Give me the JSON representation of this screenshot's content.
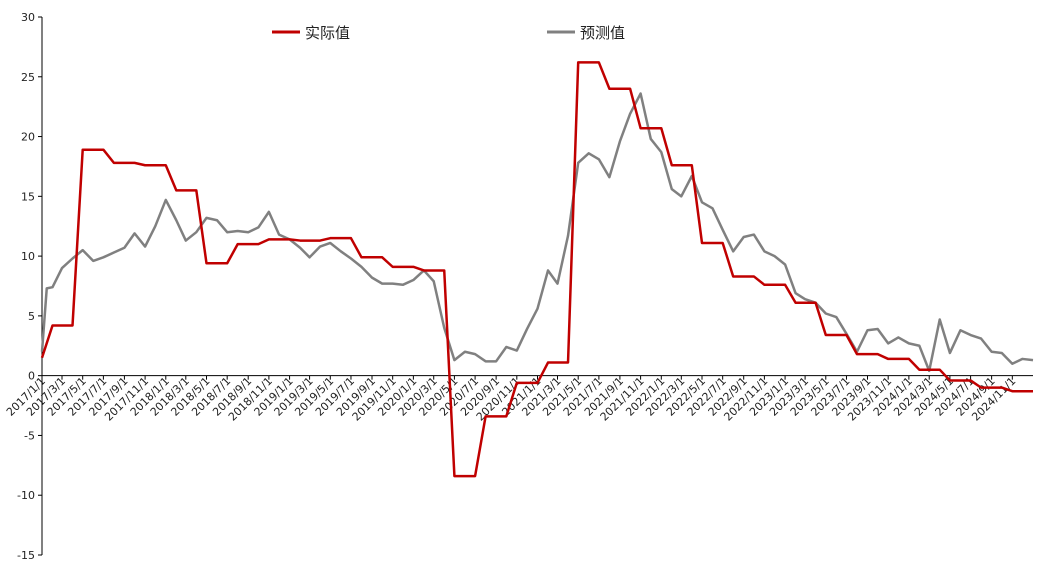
{
  "chart_data": {
    "type": "line",
    "title": "",
    "xlabel": "",
    "ylabel": "",
    "ylim": [
      -15,
      30
    ],
    "yticks": [
      -15,
      -10,
      -5,
      0,
      5,
      10,
      15,
      20,
      25,
      30
    ],
    "xlim": [
      "2017/1/1",
      "2025/1/1"
    ],
    "xtick_labels": [
      "2017/1/1",
      "2017/3/1",
      "2017/5/1",
      "2017/7/1",
      "2017/9/1",
      "2017/11/1",
      "2018/1/1",
      "2018/3/1",
      "2018/5/1",
      "2018/7/1",
      "2018/9/1",
      "2018/11/1",
      "2019/1/1",
      "2019/3/1",
      "2019/5/1",
      "2019/7/1",
      "2019/9/1",
      "2019/11/1",
      "2020/1/1",
      "2020/3/1",
      "2020/5/1",
      "2020/7/1",
      "2020/9/1",
      "2020/11/1",
      "2021/1/1",
      "2021/3/1",
      "2021/5/1",
      "2021/7/1",
      "2021/9/1",
      "2021/11/1",
      "2022/1/1",
      "2022/3/1",
      "2022/5/1",
      "2022/7/1",
      "2022/9/1",
      "2022/11/1",
      "2023/1/1",
      "2023/3/1",
      "2023/5/1",
      "2023/7/1",
      "2023/9/1",
      "2023/11/1",
      "2024/1/1",
      "2024/3/1",
      "2024/5/1",
      "2024/7/1",
      "2024/9/1",
      "2024/11/1"
    ],
    "grid": false,
    "legend": "top",
    "series": [
      {
        "name": "实际值",
        "color": "#C00000",
        "points": [
          [
            "2017/1/1",
            1.5
          ],
          [
            "2017/2/1",
            4.2
          ],
          [
            "2017/3/1",
            4.2
          ],
          [
            "2017/4/1",
            4.2
          ],
          [
            "2017/5/1",
            18.9
          ],
          [
            "2017/6/1",
            18.9
          ],
          [
            "2017/7/1",
            18.9
          ],
          [
            "2017/8/1",
            17.8
          ],
          [
            "2017/9/1",
            17.8
          ],
          [
            "2017/10/1",
            17.8
          ],
          [
            "2017/11/1",
            17.6
          ],
          [
            "2017/12/1",
            17.6
          ],
          [
            "2018/1/1",
            17.6
          ],
          [
            "2018/2/1",
            15.5
          ],
          [
            "2018/3/1",
            15.5
          ],
          [
            "2018/4/1",
            15.5
          ],
          [
            "2018/5/1",
            9.4
          ],
          [
            "2018/6/1",
            9.4
          ],
          [
            "2018/7/1",
            9.4
          ],
          [
            "2018/8/1",
            11.0
          ],
          [
            "2018/9/1",
            11.0
          ],
          [
            "2018/10/1",
            11.0
          ],
          [
            "2018/11/1",
            11.4
          ],
          [
            "2018/12/1",
            11.4
          ],
          [
            "2019/1/1",
            11.4
          ],
          [
            "2019/2/1",
            11.3
          ],
          [
            "2019/3/1",
            11.3
          ],
          [
            "2019/4/1",
            11.3
          ],
          [
            "2019/5/1",
            11.5
          ],
          [
            "2019/6/1",
            11.5
          ],
          [
            "2019/7/1",
            11.5
          ],
          [
            "2019/8/1",
            9.9
          ],
          [
            "2019/9/1",
            9.9
          ],
          [
            "2019/10/1",
            9.9
          ],
          [
            "2019/11/1",
            9.1
          ],
          [
            "2019/12/1",
            9.1
          ],
          [
            "2020/1/1",
            9.1
          ],
          [
            "2020/2/1",
            8.8
          ],
          [
            "2020/3/1",
            8.8
          ],
          [
            "2020/4/1",
            8.8
          ],
          [
            "2020/5/1",
            -8.4
          ],
          [
            "2020/6/1",
            -8.4
          ],
          [
            "2020/7/1",
            -8.4
          ],
          [
            "2020/8/1",
            -3.4
          ],
          [
            "2020/9/1",
            -3.4
          ],
          [
            "2020/10/1",
            -3.4
          ],
          [
            "2020/11/1",
            -0.6
          ],
          [
            "2020/12/1",
            -0.6
          ],
          [
            "2021/1/1",
            -0.6
          ],
          [
            "2021/2/1",
            1.1
          ],
          [
            "2021/3/1",
            1.1
          ],
          [
            "2021/4/1",
            1.1
          ],
          [
            "2021/5/1",
            26.2
          ],
          [
            "2021/6/1",
            26.2
          ],
          [
            "2021/7/1",
            26.2
          ],
          [
            "2021/8/1",
            24.0
          ],
          [
            "2021/9/1",
            24.0
          ],
          [
            "2021/10/1",
            24.0
          ],
          [
            "2021/11/1",
            20.7
          ],
          [
            "2021/12/1",
            20.7
          ],
          [
            "2022/1/1",
            20.7
          ],
          [
            "2022/2/1",
            17.6
          ],
          [
            "2022/3/1",
            17.6
          ],
          [
            "2022/4/1",
            17.6
          ],
          [
            "2022/5/1",
            11.1
          ],
          [
            "2022/6/1",
            11.1
          ],
          [
            "2022/7/1",
            11.1
          ],
          [
            "2022/8/1",
            8.3
          ],
          [
            "2022/9/1",
            8.3
          ],
          [
            "2022/10/1",
            8.3
          ],
          [
            "2022/11/1",
            7.6
          ],
          [
            "2022/12/1",
            7.6
          ],
          [
            "2023/1/1",
            7.6
          ],
          [
            "2023/2/1",
            6.1
          ],
          [
            "2023/3/1",
            6.1
          ],
          [
            "2023/4/1",
            6.1
          ],
          [
            "2023/5/1",
            3.4
          ],
          [
            "2023/6/1",
            3.4
          ],
          [
            "2023/7/1",
            3.4
          ],
          [
            "2023/8/1",
            1.8
          ],
          [
            "2023/9/1",
            1.8
          ],
          [
            "2023/10/1",
            1.8
          ],
          [
            "2023/11/1",
            1.4
          ],
          [
            "2023/12/1",
            1.4
          ],
          [
            "2024/1/1",
            1.4
          ],
          [
            "2024/2/1",
            0.5
          ],
          [
            "2024/3/1",
            0.5
          ],
          [
            "2024/4/1",
            0.5
          ],
          [
            "2024/5/1",
            -0.4
          ],
          [
            "2024/6/1",
            -0.4
          ],
          [
            "2024/7/1",
            -0.4
          ],
          [
            "2024/8/1",
            -1.0
          ],
          [
            "2024/9/1",
            -1.0
          ],
          [
            "2024/10/1",
            -1.0
          ],
          [
            "2024/11/1",
            -1.3
          ],
          [
            "2024/12/1",
            -1.3
          ],
          [
            "2025/1/1",
            -1.3
          ]
        ]
      },
      {
        "name": "预测值",
        "color": "#808080",
        "points": [
          [
            "2017/1/1",
            2.0
          ],
          [
            "2017/1/15",
            7.3
          ],
          [
            "2017/2/1",
            7.4
          ],
          [
            "2017/3/1",
            9.0
          ],
          [
            "2017/4/1",
            9.8
          ],
          [
            "2017/5/1",
            10.5
          ],
          [
            "2017/6/1",
            9.6
          ],
          [
            "2017/7/1",
            9.9
          ],
          [
            "2017/8/1",
            10.3
          ],
          [
            "2017/9/1",
            10.7
          ],
          [
            "2017/10/1",
            11.9
          ],
          [
            "2017/11/1",
            10.8
          ],
          [
            "2017/12/1",
            12.5
          ],
          [
            "2018/1/1",
            14.7
          ],
          [
            "2018/2/1",
            13.0
          ],
          [
            "2018/3/1",
            11.3
          ],
          [
            "2018/4/1",
            12.0
          ],
          [
            "2018/5/1",
            13.2
          ],
          [
            "2018/6/1",
            13.0
          ],
          [
            "2018/7/1",
            12.0
          ],
          [
            "2018/8/1",
            12.1
          ],
          [
            "2018/9/1",
            12.0
          ],
          [
            "2018/10/1",
            12.4
          ],
          [
            "2018/11/1",
            13.7
          ],
          [
            "2018/12/1",
            11.8
          ],
          [
            "2019/1/1",
            11.4
          ],
          [
            "2019/2/1",
            10.7
          ],
          [
            "2019/3/1",
            9.9
          ],
          [
            "2019/4/1",
            10.8
          ],
          [
            "2019/5/1",
            11.1
          ],
          [
            "2019/6/1",
            10.4
          ],
          [
            "2019/7/1",
            9.8
          ],
          [
            "2019/8/1",
            9.1
          ],
          [
            "2019/9/1",
            8.2
          ],
          [
            "2019/10/1",
            7.7
          ],
          [
            "2019/11/1",
            7.7
          ],
          [
            "2019/12/1",
            7.6
          ],
          [
            "2020/1/1",
            8.0
          ],
          [
            "2020/2/1",
            8.8
          ],
          [
            "2020/3/1",
            7.9
          ],
          [
            "2020/4/1",
            4.0
          ],
          [
            "2020/5/1",
            1.3
          ],
          [
            "2020/6/1",
            2.0
          ],
          [
            "2020/7/1",
            1.8
          ],
          [
            "2020/8/1",
            1.2
          ],
          [
            "2020/9/1",
            1.2
          ],
          [
            "2020/10/1",
            2.4
          ],
          [
            "2020/11/1",
            2.1
          ],
          [
            "2020/12/1",
            3.9
          ],
          [
            "2021/1/1",
            5.6
          ],
          [
            "2021/2/1",
            8.8
          ],
          [
            "2021/3/1",
            7.7
          ],
          [
            "2021/4/1",
            11.7
          ],
          [
            "2021/5/1",
            17.8
          ],
          [
            "2021/6/1",
            18.6
          ],
          [
            "2021/7/1",
            18.1
          ],
          [
            "2021/8/1",
            16.6
          ],
          [
            "2021/9/1",
            19.6
          ],
          [
            "2021/10/1",
            21.9
          ],
          [
            "2021/11/1",
            23.6
          ],
          [
            "2021/12/1",
            19.8
          ],
          [
            "2022/1/1",
            18.7
          ],
          [
            "2022/2/1",
            15.6
          ],
          [
            "2022/3/1",
            15.0
          ],
          [
            "2022/4/1",
            16.7
          ],
          [
            "2022/5/1",
            14.5
          ],
          [
            "2022/6/1",
            14.0
          ],
          [
            "2022/7/1",
            12.2
          ],
          [
            "2022/8/1",
            10.4
          ],
          [
            "2022/9/1",
            11.6
          ],
          [
            "2022/10/1",
            11.8
          ],
          [
            "2022/11/1",
            10.4
          ],
          [
            "2022/12/1",
            10.0
          ],
          [
            "2023/1/1",
            9.3
          ],
          [
            "2023/2/1",
            6.9
          ],
          [
            "2023/3/1",
            6.4
          ],
          [
            "2023/4/1",
            6.1
          ],
          [
            "2023/5/1",
            5.2
          ],
          [
            "2023/6/1",
            4.9
          ],
          [
            "2023/7/1",
            3.5
          ],
          [
            "2023/8/1",
            2.0
          ],
          [
            "2023/9/1",
            3.8
          ],
          [
            "2023/10/1",
            3.9
          ],
          [
            "2023/11/1",
            2.7
          ],
          [
            "2023/12/1",
            3.2
          ],
          [
            "2024/1/1",
            2.7
          ],
          [
            "2024/2/1",
            2.5
          ],
          [
            "2024/3/1",
            0.4
          ],
          [
            "2024/4/1",
            4.7
          ],
          [
            "2024/5/1",
            1.9
          ],
          [
            "2024/6/1",
            3.8
          ],
          [
            "2024/7/1",
            3.4
          ],
          [
            "2024/8/1",
            3.1
          ],
          [
            "2024/9/1",
            2.0
          ],
          [
            "2024/10/1",
            1.9
          ],
          [
            "2024/11/1",
            1.0
          ],
          [
            "2024/12/1",
            1.4
          ],
          [
            "2025/1/1",
            1.3
          ]
        ]
      }
    ]
  }
}
